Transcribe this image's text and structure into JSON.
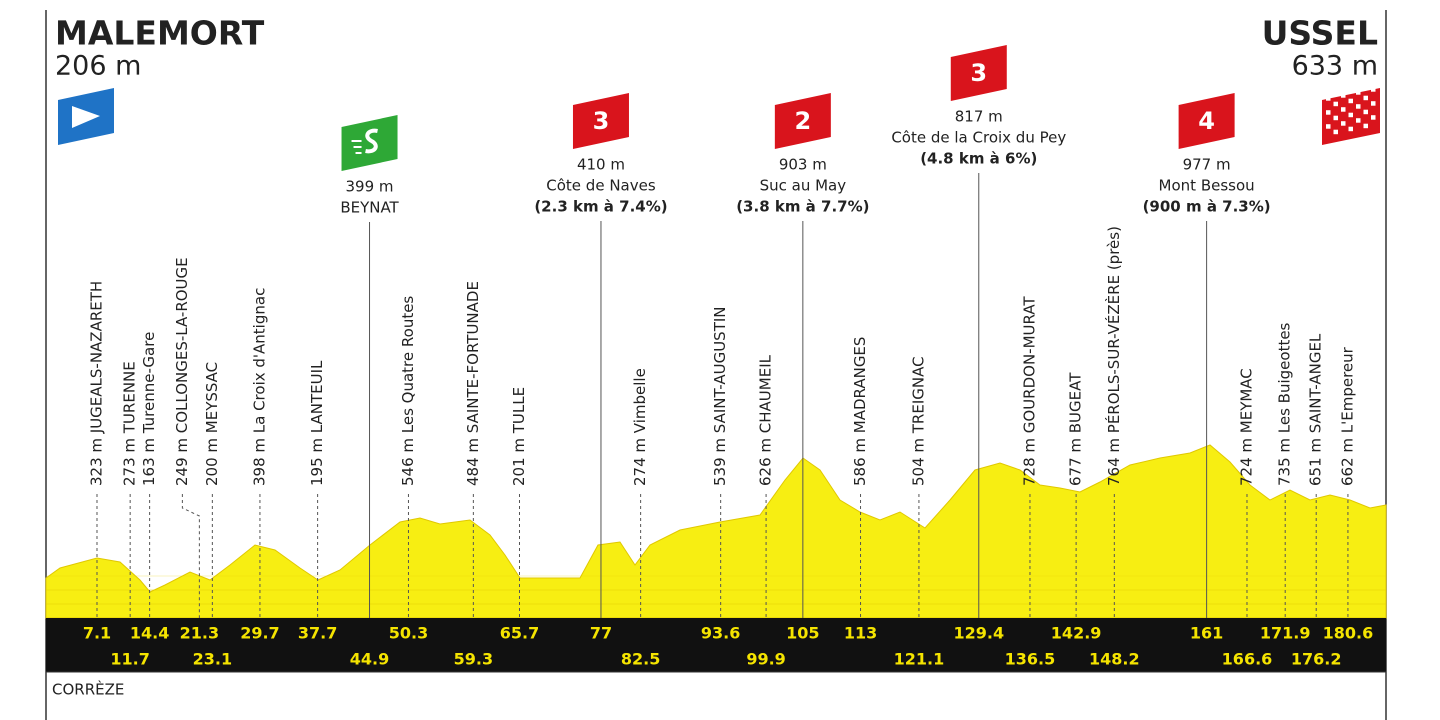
{
  "header": {
    "start": {
      "name": "MALEMORT",
      "alt": "206 m"
    },
    "finish": {
      "name": "USSEL",
      "alt": "633 m"
    }
  },
  "points": [
    {
      "label": "323 m JUGEALS-NAZARETH",
      "km": 7.1
    },
    {
      "label": "273 m TURENNE",
      "km": 11.7
    },
    {
      "label": "163 m Turenne-Gare",
      "km": 14.4
    },
    {
      "label": "249 m COLLONGES-LA-ROUGE",
      "km": 21.3
    },
    {
      "label": "200 m MEYSSAC",
      "km": 23.1
    },
    {
      "label": "398 m La Croix d'Antignac",
      "km": 29.7
    },
    {
      "label": "195 m LANTEUIL",
      "km": 37.7
    },
    {
      "alt": "399 m",
      "name": "BEYNAT",
      "km": 44.9
    },
    {
      "label": "546 m Les Quatre Routes",
      "km": 50.3
    },
    {
      "label": "484 m SAINTE-FORTUNADE",
      "km": 59.3
    },
    {
      "label": "201 m TULLE",
      "km": 65.7
    },
    {
      "category": "3",
      "alt": "410 m",
      "name": "Côte de Naves",
      "detail": "(2.3 km à 7.4%)",
      "km": 77
    },
    {
      "label": "274 m Vimbelle",
      "km": 82.5
    },
    {
      "label": "539 m SAINT-AUGUSTIN",
      "km": 93.6
    },
    {
      "label": "626 m CHAUMEIL",
      "km": 99.9
    },
    {
      "category": "2",
      "alt": "903 m",
      "name": "Suc au May",
      "detail": "(3.8 km à 7.7%)",
      "km": 105
    },
    {
      "label": "586 m MADRANGES",
      "km": 113
    },
    {
      "label": "504 m TREIGNAC",
      "km": 121.1
    },
    {
      "category": "3",
      "alt": "817 m",
      "name": "Côte de la Croix du Pey",
      "detail": "(4.8 km à 6%)",
      "km": 129.4
    },
    {
      "label": "728 m GOURDON-MURAT",
      "km": 136.5
    },
    {
      "label": "677 m BUGEAT",
      "km": 142.9
    },
    {
      "label": "764 m PÉROLS-SUR-VÉZÈRE (près)",
      "km": 148.2
    },
    {
      "category": "4",
      "alt": "977 m",
      "name": "Mont Bessou",
      "detail": "(900 m à 7.3%)",
      "km": 161
    },
    {
      "label": "724 m MEYMAC",
      "km": 166.6
    },
    {
      "label": "735 m Les Buigeottes",
      "km": 171.9
    },
    {
      "label": "651 m SAINT-ANGEL",
      "km": 176.2
    },
    {
      "label": "662 m L'Empereur",
      "km": 180.6
    }
  ],
  "region": "CORRÈZE"
}
